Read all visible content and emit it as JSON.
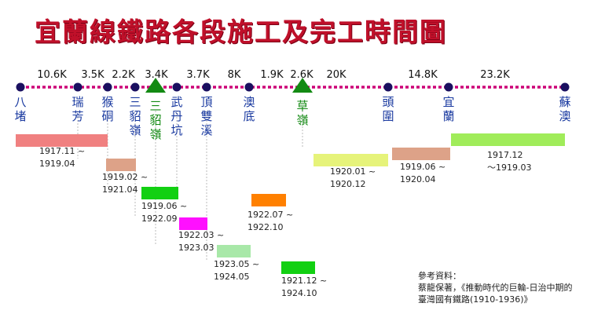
{
  "title": "宜蘭線鐵路各段施工及完工時間圖",
  "stations": [
    {
      "name": "八堵",
      "triangle": false
    },
    {
      "name": "瑞芳",
      "triangle": false
    },
    {
      "name": "猴硐",
      "triangle": false
    },
    {
      "name": "三貂嶺",
      "triangle": false
    },
    {
      "name": "三貂嶺",
      "triangle": true
    },
    {
      "name": "武丹坑",
      "triangle": false
    },
    {
      "name": "頂雙溪",
      "triangle": false
    },
    {
      "name": "澳底",
      "triangle": false
    },
    {
      "name": "草嶺",
      "triangle": true
    },
    {
      "name": "頭圍",
      "triangle": false
    },
    {
      "name": "宜蘭",
      "triangle": false
    },
    {
      "name": "蘇澳",
      "triangle": false
    }
  ],
  "distances": [
    "10.6K",
    "3.5K",
    "2.2K",
    "3.4K",
    "3.7K",
    "8K",
    "1.9K",
    "2.6K",
    "20K",
    "14.8K",
    "23.2K"
  ],
  "segments": [
    {
      "label": "1917.11 ~\n1919.04",
      "color": "#f08080"
    },
    {
      "label": "1919.02 ~\n1921.04",
      "color": "#dda288"
    },
    {
      "label": "1919.06 ~\n1922.09",
      "color": "#12d012"
    },
    {
      "label": "1922.03 ~\n1923.03",
      "color": "#ff10ff"
    },
    {
      "label": "1923.05 ~\n1924.05",
      "color": "#a8e8a8"
    },
    {
      "label": "1922.07 ~\n1922.10",
      "color": "#ff8000"
    },
    {
      "label": "1921.12 ~\n1924.10",
      "color": "#12d012"
    },
    {
      "label": "1920.01 ~\n1920.12",
      "color": "#e6f37a"
    },
    {
      "label": "1919.06 ~\n1920.04",
      "color": "#dda288"
    },
    {
      "label": "1917.12\n～1919.03",
      "color": "#a0ec5a"
    }
  ],
  "reference": {
    "line1": "參考資料：",
    "line2": "蔡龍保著，《推動時代的巨輪-日治中期的",
    "line3": "臺灣國有鐵路(1910-1936)》"
  },
  "colors": {
    "title": "#c0102a",
    "track": "#cc0077",
    "station_dot": "#1a1060",
    "triangle": "#138a13",
    "tunnel_station_text": "#138a13",
    "station_text": "#1a3aa0"
  }
}
